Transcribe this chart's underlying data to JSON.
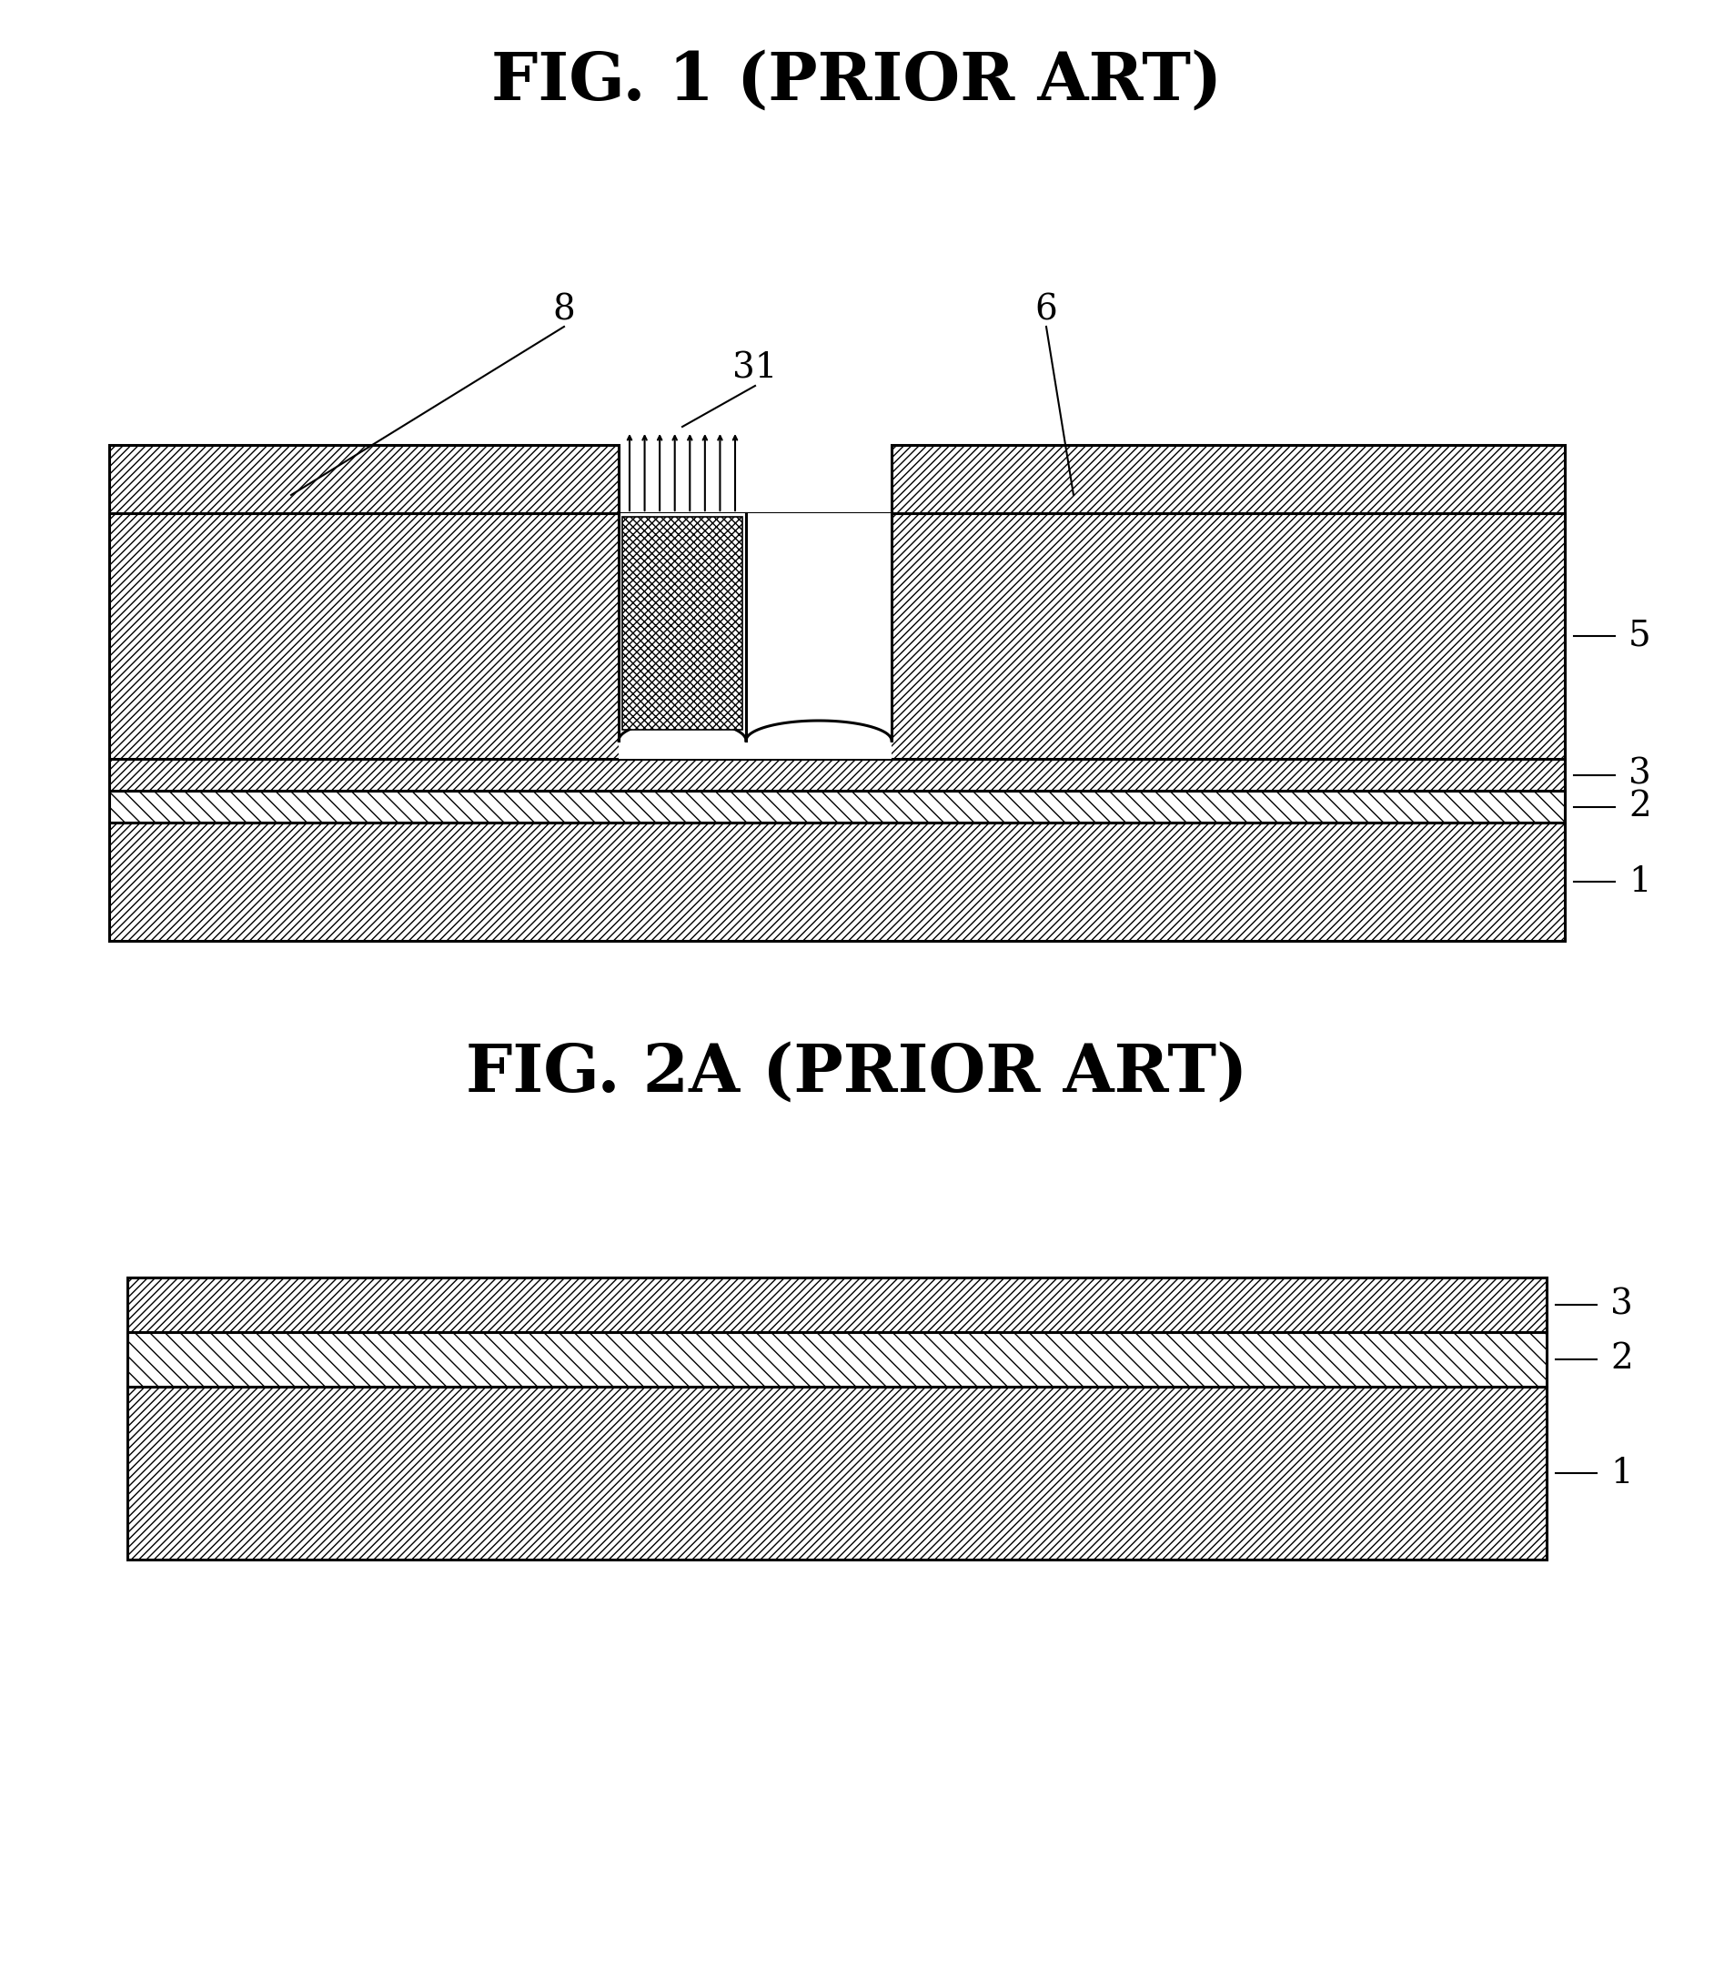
{
  "fig1_title": "FIG. 1 (PRIOR ART)",
  "fig2a_title": "FIG. 2A (PRIOR ART)",
  "bg_color": "#ffffff",
  "line_color": "#000000",
  "lw_thick": 2.2,
  "lw_thin": 1.2,
  "label_fontsize": 28,
  "title_fontsize": 52
}
